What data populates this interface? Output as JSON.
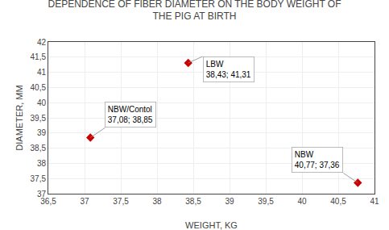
{
  "chart_data": {
    "type": "scatter",
    "title": "DEPENDENCE OF FIBER DIAMETER ON THE BODY WEIGHT OF\nTHE PIG AT BIRTH",
    "xlabel": "WEIGHT, KG",
    "ylabel": "DIAMETER, MM",
    "x": [
      38.43,
      37.08,
      40.77
    ],
    "values": [
      41.31,
      38.85,
      37.36
    ],
    "annotations": [
      "LBW\n38,43; 41,31",
      "NBW/Contol\n37,08; 38,85",
      "NBW\n40,77; 37,36"
    ],
    "color": "#cc0000",
    "marker": "diamond",
    "xlim": [
      36.5,
      41.0
    ],
    "ylim": [
      37.0,
      42.0
    ],
    "xticks": [
      {
        "value": 36.5,
        "label": "36,5"
      },
      37,
      {
        "value": 37.5,
        "label": "37,5"
      },
      38,
      {
        "value": 38.5,
        "label": "38,5"
      },
      39,
      {
        "value": 39.5,
        "label": "39,5"
      },
      40,
      {
        "value": 40.5,
        "label": "40,5"
      },
      41
    ],
    "yticks": [
      37,
      {
        "value": 37.5,
        "label": "37,5"
      },
      38,
      {
        "value": 38.5,
        "label": "38,5"
      },
      39,
      {
        "value": 39.5,
        "label": "39,5"
      },
      40,
      {
        "value": 40.5,
        "label": "40,5"
      },
      41,
      {
        "value": 41.5,
        "label": "41,5"
      },
      42
    ],
    "grid": true
  }
}
